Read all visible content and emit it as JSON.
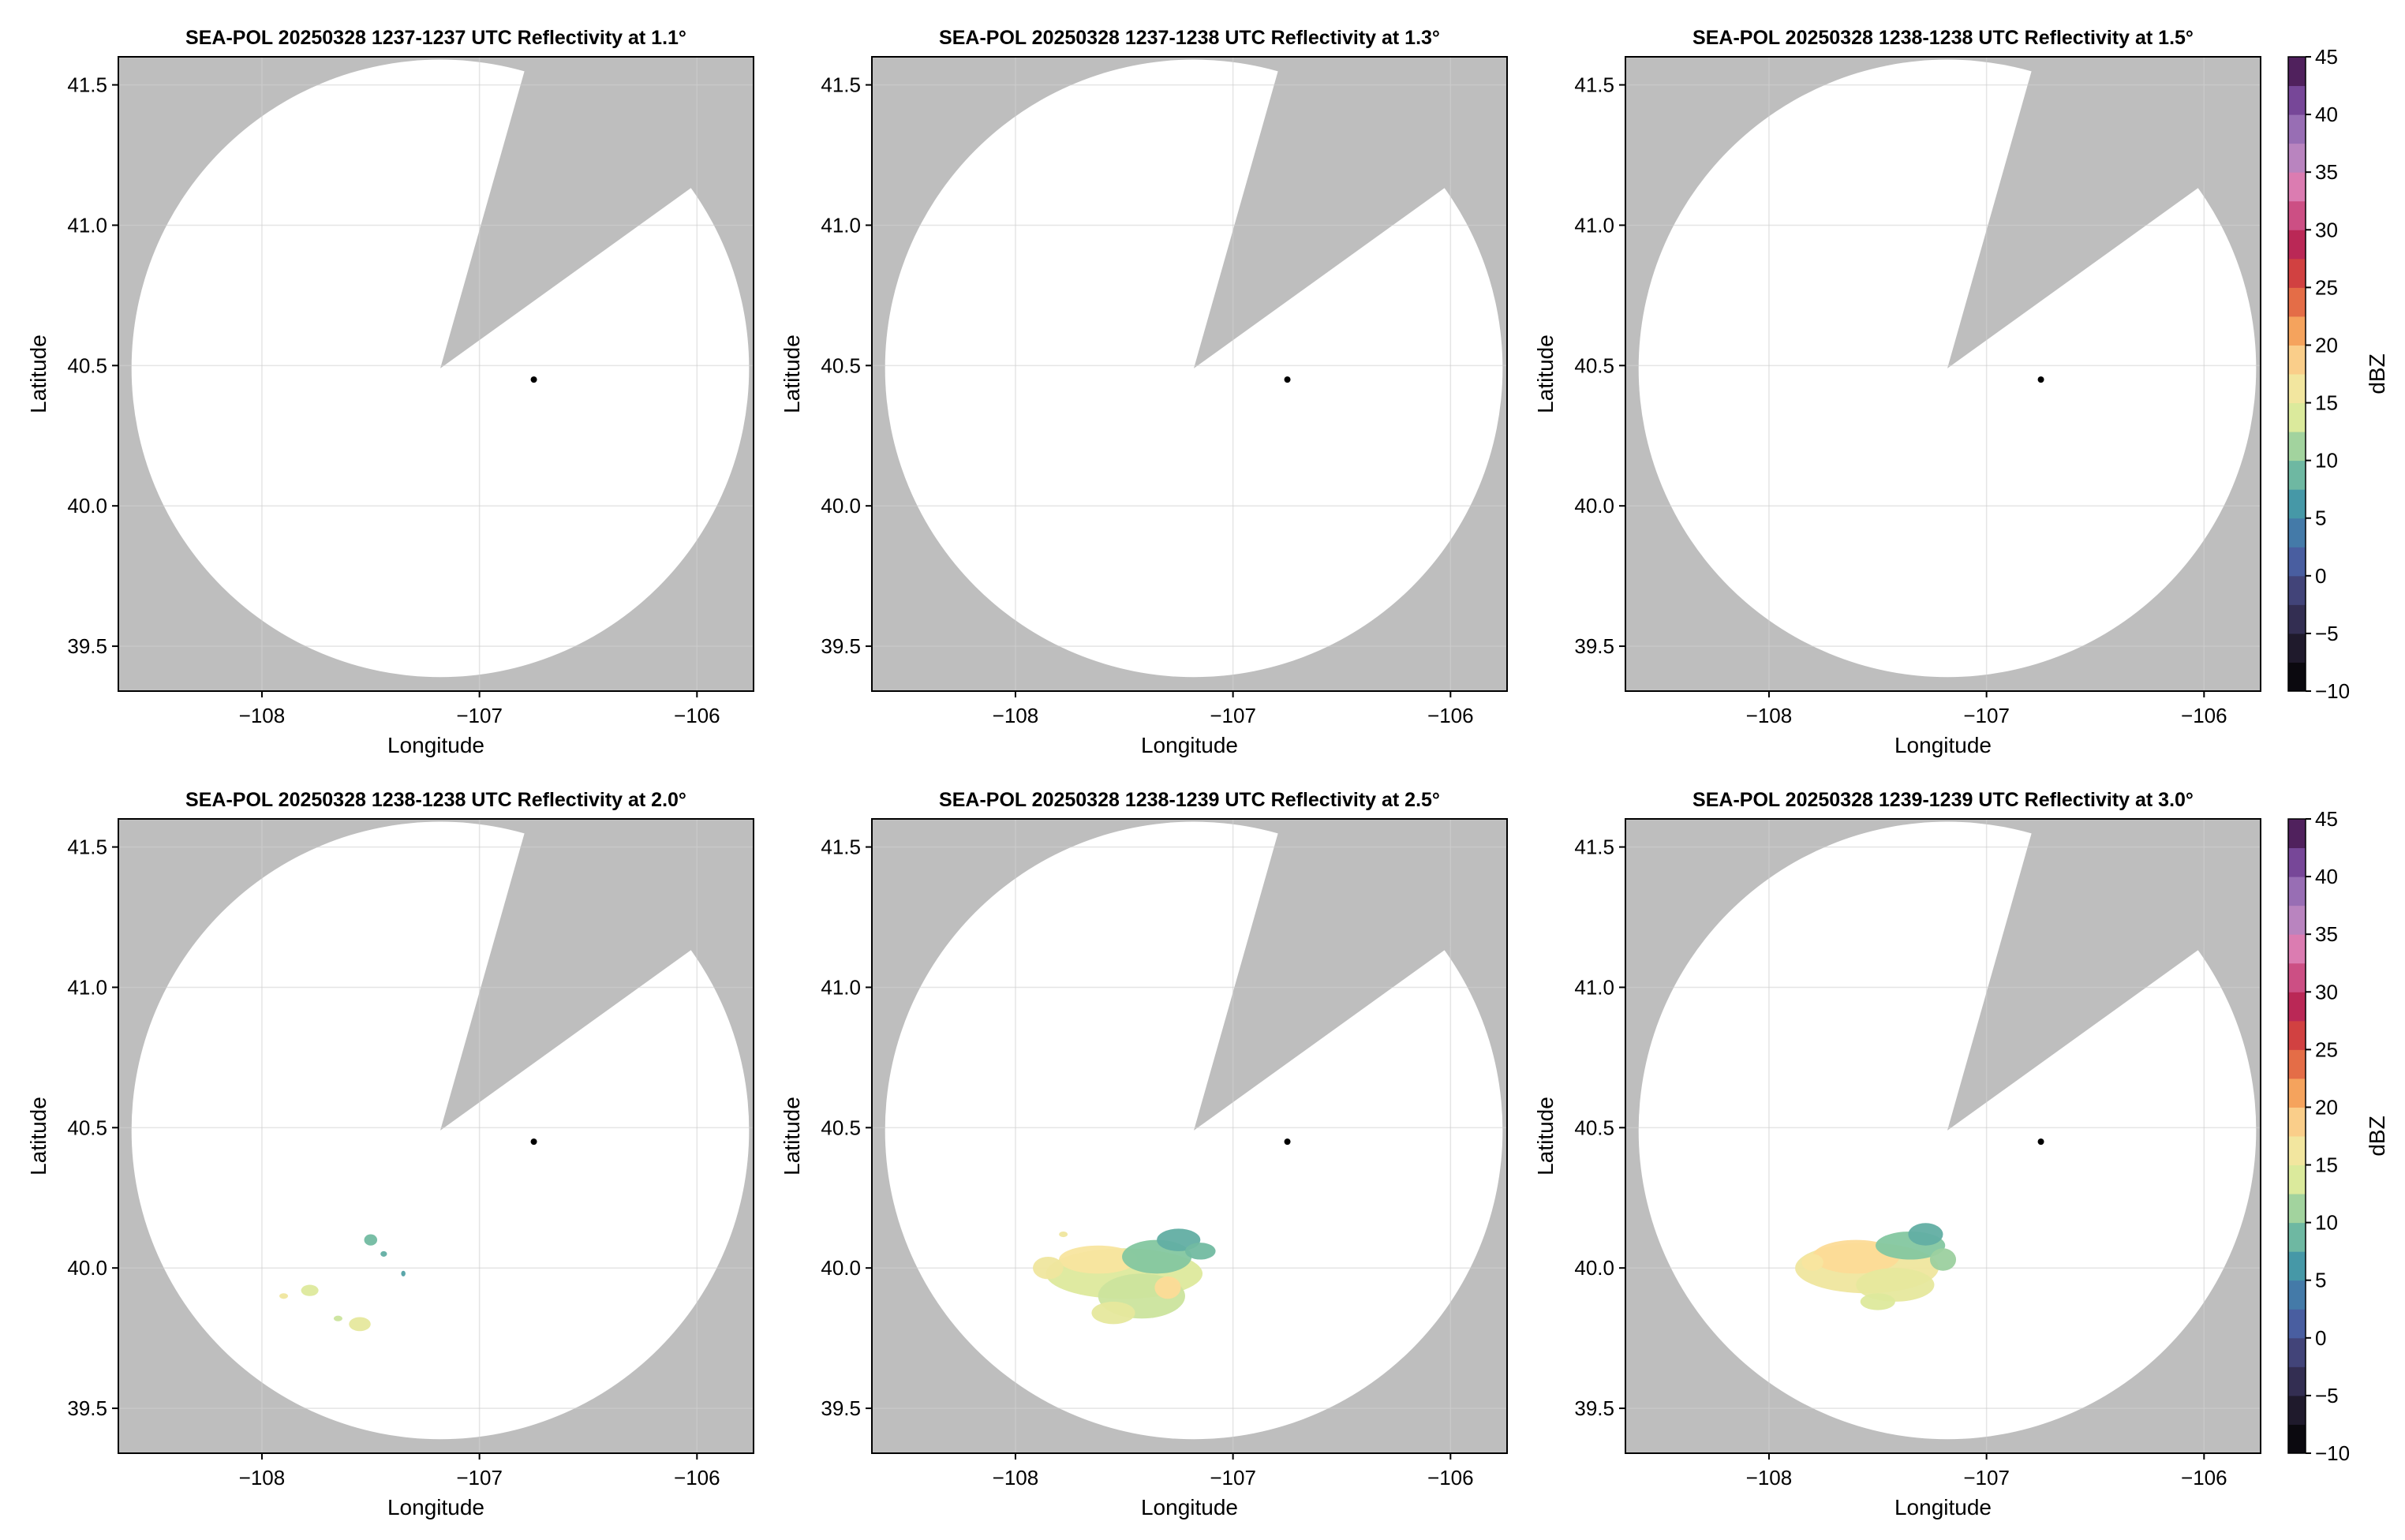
{
  "chart_data": {
    "type": "heatmap",
    "panels": [
      {
        "title": "SEA-POL 20250328 1237-1237 UTC Reflectivity at 1.1°",
        "elevation_deg": 1.1,
        "echoes": []
      },
      {
        "title": "SEA-POL 20250328 1237-1238 UTC Reflectivity at 1.3°",
        "elevation_deg": 1.3,
        "echoes": []
      },
      {
        "title": "SEA-POL 20250328 1238-1238 UTC Reflectivity at 1.5°",
        "elevation_deg": 1.5,
        "echoes": []
      },
      {
        "title": "SEA-POL 20250328 1238-1238 UTC Reflectivity at 2.0°",
        "elevation_deg": 2.0,
        "echoes": [
          {
            "lon": -107.78,
            "lat": 39.92,
            "rlon": 0.04,
            "rlat": 0.02,
            "dbz": 14
          },
          {
            "lon": -107.9,
            "lat": 39.9,
            "rlon": 0.02,
            "rlat": 0.01,
            "dbz": 16
          },
          {
            "lon": -107.55,
            "lat": 39.8,
            "rlon": 0.05,
            "rlat": 0.025,
            "dbz": 15
          },
          {
            "lon": -107.65,
            "lat": 39.82,
            "rlon": 0.02,
            "rlat": 0.01,
            "dbz": 13
          },
          {
            "lon": -107.5,
            "lat": 40.1,
            "rlon": 0.03,
            "rlat": 0.02,
            "dbz": 9
          },
          {
            "lon": -107.44,
            "lat": 40.05,
            "rlon": 0.015,
            "rlat": 0.01,
            "dbz": 8
          },
          {
            "lon": -107.35,
            "lat": 39.98,
            "rlon": 0.01,
            "rlat": 0.01,
            "dbz": 7
          }
        ]
      },
      {
        "title": "SEA-POL 20250328 1238-1239 UTC Reflectivity at 2.5°",
        "elevation_deg": 2.5,
        "echoes": [
          {
            "lon": -107.5,
            "lat": 39.98,
            "rlon": 0.36,
            "rlat": 0.09,
            "dbz": 14
          },
          {
            "lon": -107.42,
            "lat": 39.9,
            "rlon": 0.2,
            "rlat": 0.08,
            "dbz": 13
          },
          {
            "lon": -107.62,
            "lat": 40.03,
            "rlon": 0.18,
            "rlat": 0.05,
            "dbz": 17
          },
          {
            "lon": -107.35,
            "lat": 40.04,
            "rlon": 0.16,
            "rlat": 0.06,
            "dbz": 10
          },
          {
            "lon": -107.25,
            "lat": 40.1,
            "rlon": 0.1,
            "rlat": 0.04,
            "dbz": 8
          },
          {
            "lon": -107.15,
            "lat": 40.06,
            "rlon": 0.07,
            "rlat": 0.03,
            "dbz": 9
          },
          {
            "lon": -107.55,
            "lat": 39.84,
            "rlon": 0.1,
            "rlat": 0.04,
            "dbz": 15
          },
          {
            "lon": -107.85,
            "lat": 40.0,
            "rlon": 0.07,
            "rlat": 0.04,
            "dbz": 16
          },
          {
            "lon": -107.3,
            "lat": 39.93,
            "rlon": 0.06,
            "rlat": 0.04,
            "dbz": 18
          },
          {
            "lon": -107.78,
            "lat": 40.12,
            "rlon": 0.02,
            "rlat": 0.01,
            "dbz": 16
          }
        ]
      },
      {
        "title": "SEA-POL 20250328 1239-1239 UTC Reflectivity at 3.0°",
        "elevation_deg": 3.0,
        "echoes": [
          {
            "lon": -107.55,
            "lat": 40.0,
            "rlon": 0.33,
            "rlat": 0.09,
            "dbz": 16
          },
          {
            "lon": -107.6,
            "lat": 40.04,
            "rlon": 0.2,
            "rlat": 0.06,
            "dbz": 18
          },
          {
            "lon": -107.42,
            "lat": 39.94,
            "rlon": 0.18,
            "rlat": 0.06,
            "dbz": 15
          },
          {
            "lon": -107.35,
            "lat": 40.08,
            "rlon": 0.16,
            "rlat": 0.05,
            "dbz": 10
          },
          {
            "lon": -107.28,
            "lat": 40.12,
            "rlon": 0.08,
            "rlat": 0.04,
            "dbz": 8
          },
          {
            "lon": -107.2,
            "lat": 40.03,
            "rlon": 0.06,
            "rlat": 0.04,
            "dbz": 11
          },
          {
            "lon": -107.5,
            "lat": 39.88,
            "rlon": 0.08,
            "rlat": 0.03,
            "dbz": 14
          },
          {
            "lon": -107.8,
            "lat": 40.02,
            "rlon": 0.05,
            "rlat": 0.03,
            "dbz": 17
          }
        ]
      }
    ],
    "xlabel": "Longitude",
    "ylabel": "Latitude",
    "xlim": [
      -108.66,
      -105.74
    ],
    "ylim": [
      39.34,
      41.6
    ],
    "xticks": [
      -108,
      -107,
      -106
    ],
    "xtick_labels": [
      "−108",
      "−107",
      "−106"
    ],
    "yticks": [
      39.5,
      40.0,
      40.5,
      41.0,
      41.5
    ],
    "ytick_labels": [
      "39.5",
      "40.0",
      "40.5",
      "41.0",
      "41.5"
    ],
    "grid": true,
    "radar_site": {
      "lon": -106.75,
      "lat": 40.45
    },
    "coverage": {
      "center": {
        "lon": -107.18,
        "lat": 40.49
      },
      "radius_lat_deg": 1.1,
      "blocked_sector": [
        {
          "lon": -106.8,
          "lat": 41.53
        },
        {
          "lon": -106.05,
          "lat": 41.12
        }
      ]
    },
    "colorbar": {
      "label": "dBZ",
      "range": [
        -10,
        45
      ],
      "ticks": [
        -10,
        -5,
        0,
        5,
        10,
        15,
        20,
        25,
        30,
        35,
        40,
        45
      ],
      "tick_labels": [
        "−10",
        "−5",
        "0",
        "5",
        "10",
        "15",
        "20",
        "25",
        "30",
        "35",
        "40",
        "45"
      ],
      "placement": "right of each row"
    },
    "colors": {
      "no_coverage": "#bebebe",
      "background": "#ffffff",
      "grid": "#e3e3e3",
      "colormap": [
        "#000000",
        "#211b2e",
        "#3f3b6b",
        "#4a63a8",
        "#3d91a8",
        "#7cc3a0",
        "#d9ea9c",
        "#fde4a0",
        "#f5a05a",
        "#d94a3a",
        "#b5235a",
        "#e27aae",
        "#ad87c4",
        "#7a4a9c",
        "#3d0e40"
      ]
    }
  }
}
